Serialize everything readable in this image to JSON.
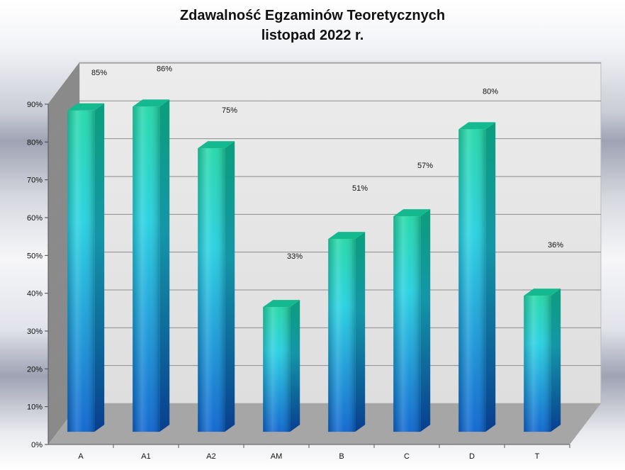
{
  "chart_data": {
    "type": "bar",
    "title": "Zdawalność Egzaminów Teoretycznych",
    "subtitle": "listopad 2022 r.",
    "categories": [
      "A",
      "A1",
      "A2",
      "AM",
      "B",
      "C",
      "D",
      "T"
    ],
    "values": [
      85,
      86,
      75,
      33,
      51,
      57,
      80,
      36
    ],
    "data_labels": [
      "85%",
      "86%",
      "75%",
      "33%",
      "51%",
      "57%",
      "80%",
      "36%"
    ],
    "y_ticks": [
      "0%",
      "10%",
      "20%",
      "30%",
      "40%",
      "50%",
      "60%",
      "70%",
      "80%",
      "90%"
    ],
    "ylim": [
      0,
      90
    ],
    "value_unit": "%",
    "grid": true,
    "three_d": true,
    "legend": "none",
    "colors": {
      "bar_top": "#1ed7a6",
      "bar_mid": "#22d0e0",
      "bar_bottom": "#0a6fd6",
      "wall": "#e6e6e6",
      "side_wall": "#8a8a8a",
      "floor": "#a6a6a6",
      "grid": "#8c8c8c"
    }
  }
}
